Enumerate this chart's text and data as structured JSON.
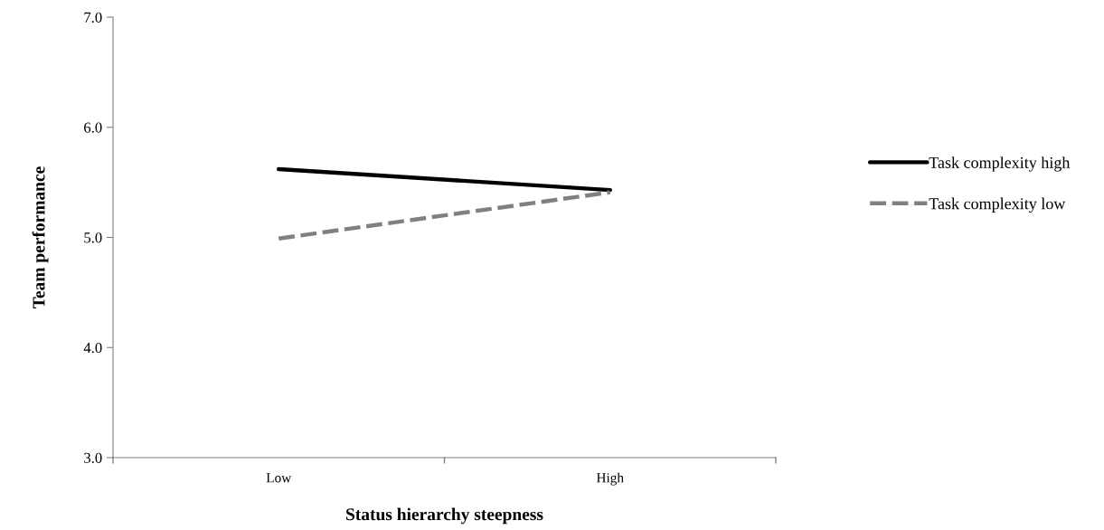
{
  "chart_data": {
    "type": "line",
    "xlabel": "Status hierarchy steepness",
    "ylabel": "Team performance",
    "categories": [
      "Low",
      "High"
    ],
    "series": [
      {
        "name": "Task complexity high",
        "color": "#000000",
        "values": [
          5.62,
          5.43
        ],
        "line_style": "solid"
      },
      {
        "name": "Task complexity low",
        "color": "#808080",
        "values": [
          4.99,
          5.41
        ],
        "line_style": "dashed"
      }
    ],
    "ylim": [
      3.0,
      7.0
    ],
    "yticks": [
      {
        "value": 3,
        "label": "3.0"
      },
      {
        "value": 4,
        "label": "4.0"
      },
      {
        "value": 5,
        "label": "5.0"
      },
      {
        "value": 6,
        "label": "6.0"
      },
      {
        "value": 7,
        "label": "7.0"
      }
    ],
    "grid": false,
    "legend": "right",
    "marker": "none"
  }
}
